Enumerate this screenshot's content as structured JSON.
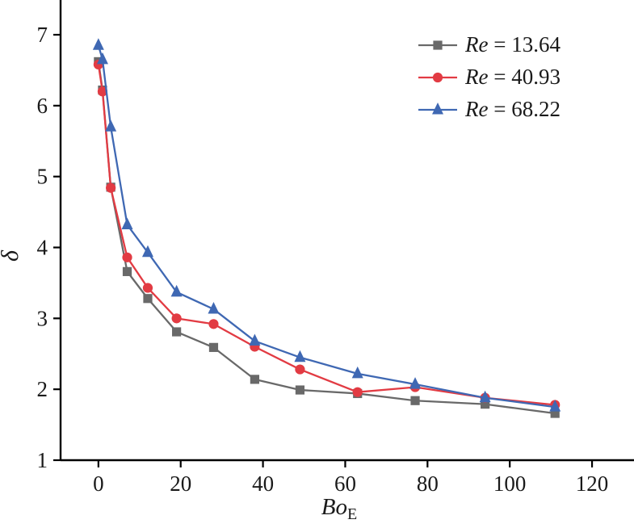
{
  "chart_data": {
    "type": "line",
    "title": "",
    "xlabel": "Bo",
    "xlabel_subscript": "E",
    "ylabel": "δ",
    "xlim": [
      -9.2,
      130.2
    ],
    "ylim": [
      1,
      7.49
    ],
    "x_ticks": [
      0,
      20,
      40,
      60,
      80,
      100,
      120
    ],
    "y_ticks": [
      1,
      2,
      3,
      4,
      5,
      6,
      7
    ],
    "grid": false,
    "legend_position": "top-right",
    "axis_color": "#000000",
    "x": [
      0,
      1,
      3,
      7,
      12,
      19,
      28,
      38,
      49,
      63,
      77,
      94,
      111
    ],
    "series": [
      {
        "name": "Re = 13.64",
        "legend_italic": "Re",
        "legend_rest": " = 13.64",
        "marker": "square",
        "color": "#696969",
        "values": [
          6.62,
          6.22,
          4.85,
          3.66,
          3.28,
          2.81,
          2.59,
          2.14,
          1.99,
          1.94,
          1.84,
          1.79,
          1.66
        ]
      },
      {
        "name": "Re = 40.93",
        "legend_italic": "Re",
        "legend_rest": " = 40.93",
        "marker": "circle",
        "color": "#e23b43",
        "values": [
          6.58,
          6.2,
          4.84,
          3.86,
          3.43,
          3.0,
          2.92,
          2.6,
          2.28,
          1.96,
          2.03,
          1.88,
          1.78
        ]
      },
      {
        "name": "Re = 68.22",
        "legend_italic": "Re",
        "legend_rest": " = 68.22",
        "marker": "triangle",
        "color": "#3f68b3",
        "values": [
          6.85,
          6.65,
          5.7,
          4.32,
          3.93,
          3.37,
          3.13,
          2.68,
          2.45,
          2.22,
          2.07,
          1.88,
          1.75
        ]
      }
    ]
  }
}
